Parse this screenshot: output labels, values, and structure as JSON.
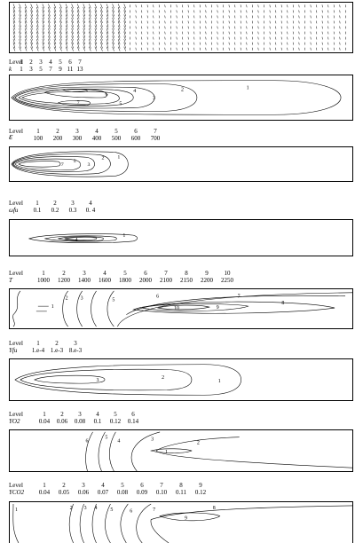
{
  "legends": [
    {
      "id": "k",
      "header": "Level",
      "variable": "k",
      "levels": [
        "1",
        "2",
        "3",
        "4",
        "5",
        "6",
        "7"
      ],
      "values": [
        "1",
        "3",
        "5",
        "7",
        "9",
        "11",
        "13"
      ]
    },
    {
      "id": "eps",
      "header": "Level",
      "variable": "ε",
      "levels": [
        "1",
        "2",
        "3",
        "4",
        "5",
        "6",
        "7"
      ],
      "values": [
        "100",
        "200",
        "300",
        "400",
        "500",
        "600",
        "700"
      ]
    },
    {
      "id": "omega",
      "header": "Level",
      "variable": "ω̇fu",
      "levels": [
        "1",
        "2",
        "3",
        "4"
      ],
      "values": [
        "0.1",
        "0.2",
        "0.3",
        "0. 4"
      ]
    },
    {
      "id": "T",
      "header": "Level",
      "variable": "T",
      "levels": [
        "1",
        "2",
        "3",
        "4",
        "5",
        "6",
        "7",
        "8",
        "9",
        "10"
      ],
      "values": [
        "1000",
        "1200",
        "1400",
        "1600",
        "1800",
        "2000",
        "2100",
        "2150",
        "2200",
        "2250"
      ]
    },
    {
      "id": "yfu",
      "header": "Level",
      "variable": "Yfu",
      "levels": [
        "1",
        "2",
        "3"
      ],
      "values": [
        "1.e-4",
        "1.e-3",
        "8.e-3"
      ]
    },
    {
      "id": "yo2",
      "header": "Level",
      "variable": "YO2",
      "levels": [
        "1",
        "2",
        "3",
        "4",
        "5",
        "6"
      ],
      "values": [
        "0.04",
        "0.06",
        "0.08",
        "0.1",
        "0.12",
        "0.14"
      ]
    },
    {
      "id": "yco2",
      "header": "Level",
      "variable": "YCO2",
      "levels": [
        "1",
        "2",
        "3",
        "4",
        "5",
        "6",
        "7",
        "8",
        "9"
      ],
      "values": [
        "0.04",
        "0.05",
        "0.06",
        "0.07",
        "0.08",
        "0.09",
        "0.10",
        "0.11",
        "0.12"
      ]
    }
  ],
  "contour_labels": {
    "k": [
      "1",
      "2",
      "3",
      "4",
      "5",
      "6",
      "7"
    ],
    "eps": [
      "1",
      "2",
      "3",
      "5",
      "7"
    ],
    "omega": [
      "1",
      "4"
    ],
    "T": [
      "1",
      "2",
      "3",
      "5",
      "6",
      "7",
      "8",
      "9",
      "10"
    ],
    "yfu": [
      "1",
      "2",
      "3"
    ],
    "yo2": [
      "1",
      "2",
      "3",
      "4",
      "5",
      "6"
    ],
    "yco2": [
      "1",
      "2",
      "3",
      "4",
      "5",
      "6",
      "7",
      "8",
      "9"
    ]
  }
}
